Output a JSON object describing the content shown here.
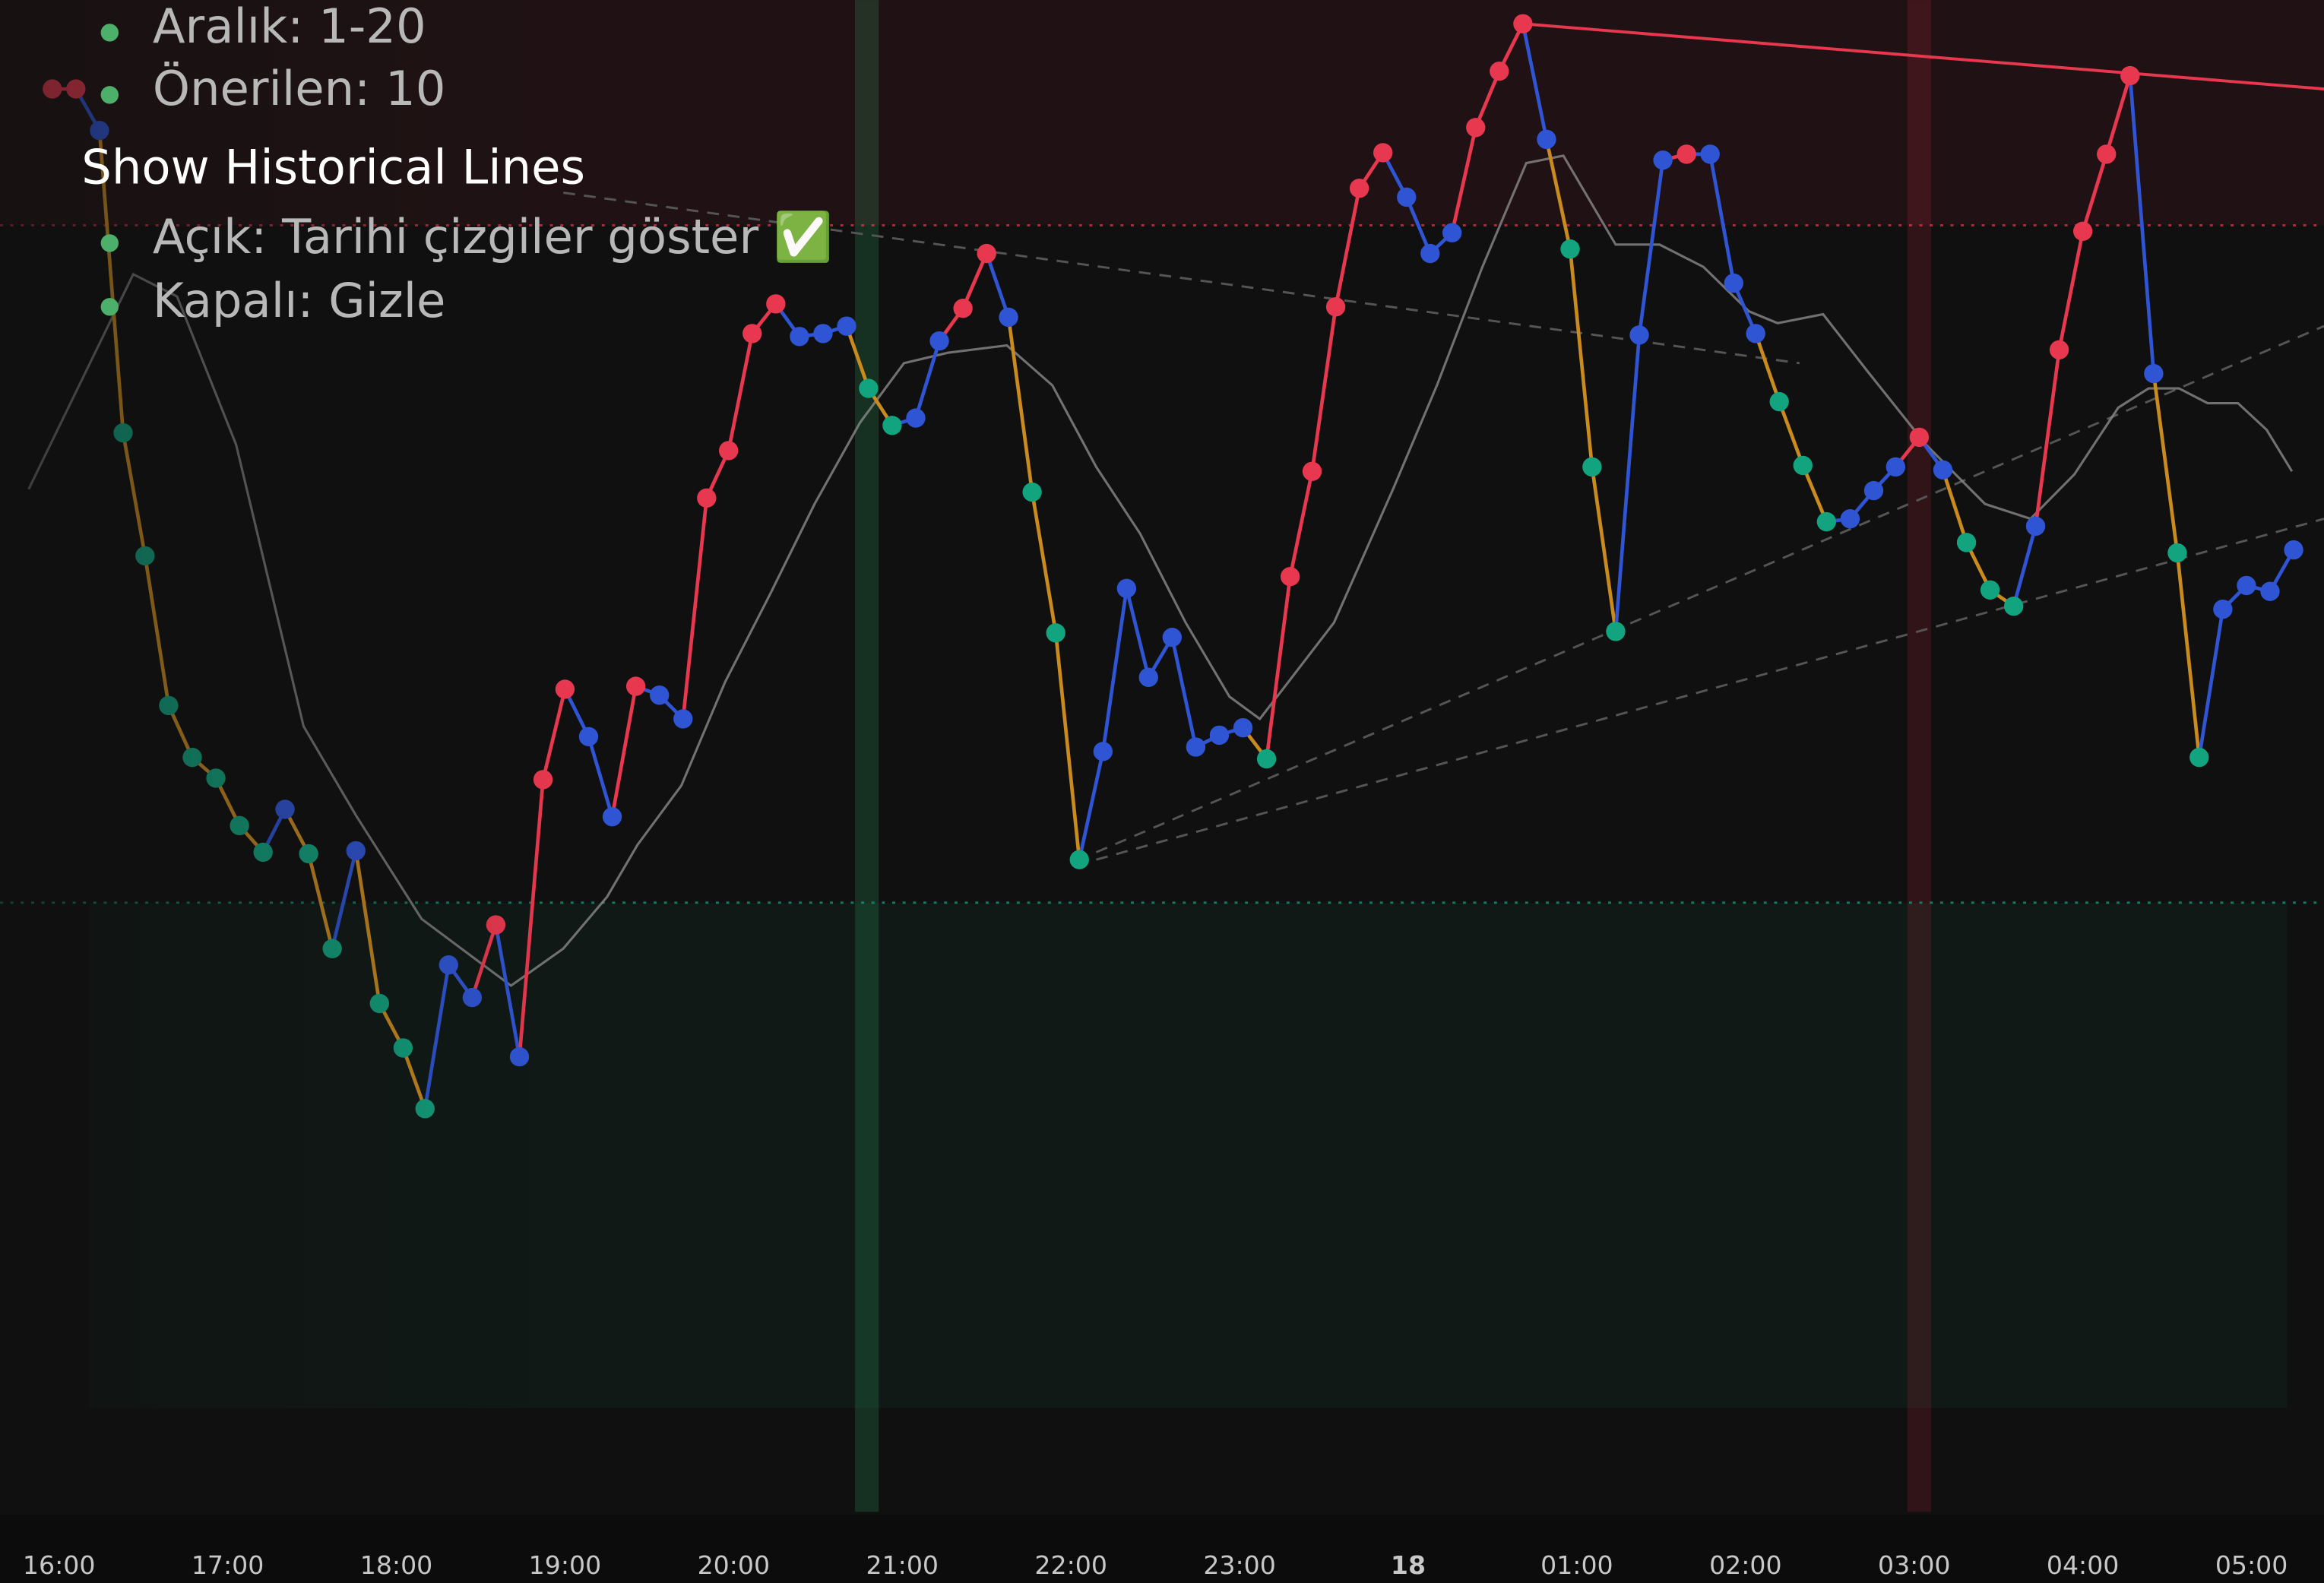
{
  "help": {
    "list1": [
      "Aralık: 1-20",
      "Önerilen: 10"
    ],
    "heading": "Show Historical Lines",
    "list2": [
      "Açık: Tarihi çizgiler göster ✅",
      "Kapalı: Gizle"
    ]
  },
  "chart_data": {
    "type": "line",
    "xlim": [
      -0.35,
      13.43
    ],
    "ylim": [
      0,
      102
    ],
    "xticks": [
      {
        "value": 0,
        "label": "16:00"
      },
      {
        "value": 1,
        "label": "17:00"
      },
      {
        "value": 2,
        "label": "18:00"
      },
      {
        "value": 3,
        "label": "19:00"
      },
      {
        "value": 4,
        "label": "20:00"
      },
      {
        "value": 5,
        "label": "21:00"
      },
      {
        "value": 6,
        "label": "22:00"
      },
      {
        "value": 7,
        "label": "23:00"
      },
      {
        "value": 8,
        "label": "18"
      },
      {
        "value": 9,
        "label": "01:00"
      },
      {
        "value": 10,
        "label": "02:00"
      },
      {
        "value": 11,
        "label": "03:00"
      },
      {
        "value": 12,
        "label": "04:00"
      },
      {
        "value": 13,
        "label": "05:00"
      }
    ],
    "falling_color": "#c98a1e",
    "series": [
      {
        "x": [
          -0.04,
          0.1,
          0.24,
          0.38,
          0.51,
          0.65,
          0.79,
          0.93,
          1.07,
          1.21,
          1.34,
          1.48,
          1.62,
          1.76,
          1.9,
          2.04,
          2.17,
          2.31,
          2.45,
          2.59,
          2.73,
          2.87,
          3.0,
          3.14,
          3.28,
          3.42,
          3.56,
          3.7,
          3.84,
          3.97,
          4.11,
          4.25,
          4.39,
          4.53,
          4.67,
          4.8,
          4.94,
          5.08,
          5.22,
          5.36,
          5.5,
          5.63,
          5.77,
          5.91,
          6.05,
          6.19,
          6.33,
          6.46,
          6.6,
          6.74,
          6.88,
          7.02,
          7.16,
          7.3,
          7.43,
          7.57,
          7.71,
          7.85,
          7.99,
          8.13,
          8.26,
          8.4,
          8.54,
          8.68,
          8.82,
          8.96,
          9.09,
          9.23,
          9.37,
          9.51,
          9.65,
          9.79,
          9.93,
          10.06,
          10.2,
          10.34,
          10.48,
          10.62,
          10.76,
          10.89,
          11.03,
          11.17,
          11.31,
          11.45,
          11.59,
          11.72,
          11.86,
          12.0,
          12.14,
          12.28,
          12.42,
          12.56,
          12.69,
          12.83,
          12.97,
          13.11,
          13.25
        ],
        "values": [
          96.0,
          96.0,
          93.2,
          72.8,
          64.5,
          54.4,
          50.9,
          49.5,
          46.3,
          44.5,
          47.4,
          44.4,
          38.0,
          44.6,
          34.3,
          31.3,
          27.2,
          36.9,
          34.7,
          39.6,
          30.7,
          49.4,
          55.5,
          52.3,
          46.9,
          55.7,
          55.1,
          53.5,
          68.4,
          71.6,
          79.5,
          81.5,
          79.3,
          79.5,
          80.0,
          75.8,
          73.3,
          73.8,
          79.0,
          81.2,
          84.9,
          80.6,
          68.8,
          59.3,
          44.0,
          51.3,
          62.3,
          56.3,
          59.0,
          51.6,
          52.4,
          52.9,
          50.8,
          63.1,
          70.2,
          81.3,
          89.3,
          91.7,
          88.7,
          84.9,
          86.3,
          93.4,
          97.2,
          100.4,
          92.6,
          85.2,
          70.5,
          59.4,
          79.4,
          91.2,
          91.6,
          91.6,
          82.9,
          79.5,
          74.9,
          70.6,
          66.8,
          67.0,
          68.9,
          70.5,
          72.5,
          70.3,
          65.4,
          62.2,
          61.1,
          66.5,
          78.4,
          86.4,
          91.6,
          96.9,
          76.8,
          64.7,
          50.9,
          60.9,
          62.5,
          62.1,
          64.9
        ],
        "colors": [
          "#e8384f",
          "#e8384f",
          "#2f55d4",
          "#12a37f",
          "#12a37f",
          "#12a37f",
          "#12a37f",
          "#12a37f",
          "#12a37f",
          "#12a37f",
          "#2f55d4",
          "#12a37f",
          "#12a37f",
          "#2f55d4",
          "#12a37f",
          "#12a37f",
          "#12a37f",
          "#2f55d4",
          "#2f55d4",
          "#e8384f",
          "#2f55d4",
          "#e8384f",
          "#e8384f",
          "#2f55d4",
          "#2f55d4",
          "#e8384f",
          "#2f55d4",
          "#2f55d4",
          "#e8384f",
          "#e8384f",
          "#e8384f",
          "#e8384f",
          "#2f55d4",
          "#2f55d4",
          "#2f55d4",
          "#12a37f",
          "#12a37f",
          "#2f55d4",
          "#2f55d4",
          "#e8384f",
          "#e8384f",
          "#2f55d4",
          "#12a37f",
          "#12a37f",
          "#12a37f",
          "#2f55d4",
          "#2f55d4",
          "#2f55d4",
          "#2f55d4",
          "#2f55d4",
          "#2f55d4",
          "#2f55d4",
          "#12a37f",
          "#e8384f",
          "#e8384f",
          "#e8384f",
          "#e8384f",
          "#e8384f",
          "#2f55d4",
          "#2f55d4",
          "#2f55d4",
          "#e8384f",
          "#e8384f",
          "#e8384f",
          "#2f55d4",
          "#12a37f",
          "#12a37f",
          "#12a37f",
          "#2f55d4",
          "#2f55d4",
          "#e8384f",
          "#2f55d4",
          "#2f55d4",
          "#2f55d4",
          "#12a37f",
          "#12a37f",
          "#12a37f",
          "#2f55d4",
          "#2f55d4",
          "#2f55d4",
          "#e8384f",
          "#2f55d4",
          "#12a37f",
          "#12a37f",
          "#12a37f",
          "#2f55d4",
          "#e8384f",
          "#e8384f",
          "#e8384f",
          "#e8384f",
          "#2f55d4",
          "#12a37f",
          "#12a37f",
          "#2f55d4",
          "#2f55d4",
          "#2f55d4",
          "#2f55d4"
        ]
      },
      {
        "color": "#8a8a8a",
        "x": [
          -0.18,
          0.44,
          0.7,
          1.05,
          1.45,
          1.76,
          2.15,
          2.68,
          2.99,
          3.25,
          3.43,
          3.69,
          3.95,
          4.22,
          4.48,
          4.75,
          5.01,
          5.27,
          5.62,
          5.89,
          6.15,
          6.41,
          6.68,
          6.94,
          7.12,
          7.29,
          7.56,
          7.91,
          8.17,
          8.44,
          8.7,
          8.92,
          9.23,
          9.49,
          9.75,
          10.02,
          10.19,
          10.46,
          10.72,
          11.07,
          11.42,
          11.69,
          11.95,
          12.21,
          12.39,
          12.57,
          12.74,
          12.92,
          13.09,
          13.24
        ],
        "values": [
          69.0,
          83.5,
          82.0,
          72.0,
          53.0,
          47.0,
          40.0,
          35.5,
          38.0,
          41.5,
          45.0,
          49.0,
          56.0,
          62.0,
          68.0,
          73.5,
          77.5,
          78.2,
          78.7,
          76.0,
          70.5,
          66.0,
          60.0,
          55.0,
          53.5,
          56.0,
          60.0,
          69.0,
          76.0,
          84.0,
          91.0,
          91.5,
          85.5,
          85.5,
          84.0,
          81.0,
          80.2,
          80.8,
          77.0,
          72.0,
          68.0,
          67.0,
          70.0,
          74.5,
          75.8,
          75.8,
          74.8,
          74.8,
          73.0,
          70.2
        ]
      }
    ],
    "levels": [
      {
        "value": 86.8,
        "color": "#e8384f",
        "zone": "above"
      },
      {
        "value": 41.1,
        "color": "#12a37f",
        "zone": "below"
      }
    ],
    "vbands": [
      {
        "value": 4.79,
        "color": "#1f5a3a"
      },
      {
        "value": 11.03,
        "color": "#5a1a24"
      }
    ],
    "trendlines": [
      {
        "x": [
          8.68,
          13.43
        ],
        "values": [
          100.4,
          96.0
        ],
        "color": "#e8384f",
        "dashed": false
      },
      {
        "x": [
          2.99,
          10.32
        ],
        "values": [
          89.0,
          77.5
        ],
        "color": "#555555",
        "dashed": true
      },
      {
        "x": [
          6.15,
          13.43
        ],
        "values": [
          44.5,
          80.0
        ],
        "color": "#555555",
        "dashed": true
      },
      {
        "x": [
          6.15,
          13.43
        ],
        "values": [
          44.0,
          67.0
        ],
        "color": "#555555",
        "dashed": true
      }
    ]
  }
}
